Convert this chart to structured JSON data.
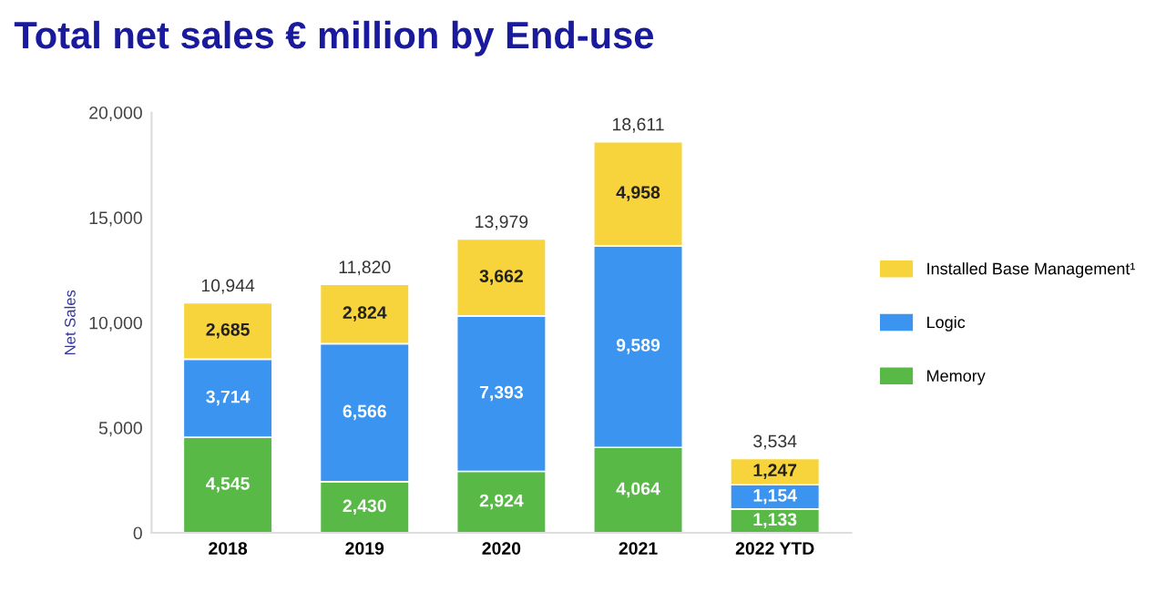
{
  "chart_data": {
    "type": "bar",
    "title": "Total net sales € million by End-use",
    "ylabel": "Net Sales",
    "categories": [
      "2018",
      "2019",
      "2020",
      "2021",
      "2022 YTD"
    ],
    "stacked": true,
    "series": [
      {
        "name": "Memory",
        "color": "#58b947",
        "values": [
          4545,
          2430,
          2924,
          4064,
          1133
        ],
        "value_labels": [
          "4,545",
          "2,430",
          "2,924",
          "4,064",
          "1,133"
        ]
      },
      {
        "name": "Logic",
        "color": "#3a94f0",
        "values": [
          3714,
          6566,
          7393,
          9589,
          1154
        ],
        "value_labels": [
          "3,714",
          "6,566",
          "7,393",
          "9,589",
          "1,154"
        ]
      },
      {
        "name": "Installed Base Management¹",
        "color": "#f8d43c",
        "values": [
          2685,
          2824,
          3662,
          4958,
          1247
        ],
        "value_labels": [
          "2,685",
          "2,824",
          "3,662",
          "4,958",
          "1,247"
        ]
      }
    ],
    "totals": [
      "10,944",
      "11,820",
      "13,979",
      "18,611",
      "3,534"
    ],
    "ylim": [
      0,
      20000
    ],
    "yticks": [
      0,
      {
        "value": 5000,
        "label": "5,000"
      },
      {
        "value": 10000,
        "label": "10,000"
      },
      {
        "value": 15000,
        "label": "15,000"
      },
      {
        "value": 20000,
        "label": "20,000"
      }
    ],
    "grid": false,
    "legend": "right"
  }
}
